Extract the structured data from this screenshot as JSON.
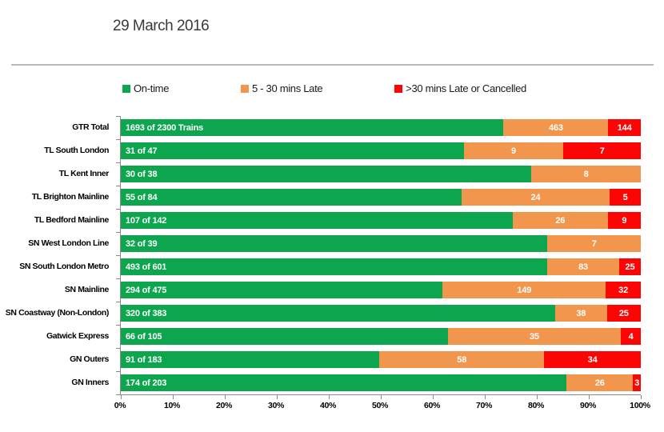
{
  "title": "29 March 2016",
  "legend": [
    {
      "label": "On-time",
      "color": "#0da64f"
    },
    {
      "label": "5 - 30 mins Late",
      "color": "#f2964e"
    },
    {
      "label": ">30 mins Late or Cancelled",
      "color": "#fb0505"
    }
  ],
  "colors": {
    "on_time": "#0da64f",
    "late": "#f2964e",
    "cancelled": "#fb0505",
    "axis": "#8a8a8a",
    "separator": "#b9b9b9",
    "title_text": "#3a3a3a"
  },
  "chart_data": {
    "type": "bar",
    "subtype": "horizontal-100pct-stacked",
    "title": "29 March 2016",
    "xlabel": "",
    "ylabel": "",
    "xlim": [
      0,
      100
    ],
    "x_ticks": [
      "0%",
      "10%",
      "20%",
      "30%",
      "40%",
      "50%",
      "60%",
      "70%",
      "80%",
      "90%",
      "100%"
    ],
    "grid": false,
    "legend_position": "top",
    "categories": [
      "GTR Total",
      "TL South London",
      "TL Kent Inner",
      "TL Brighton Mainline",
      "TL Bedford Mainline",
      "SN West London Line",
      "SN South London Metro",
      "SN Mainline",
      "SN Coastway (Non-London)",
      "Gatwick Express",
      "GN Outers",
      "GN Inners"
    ],
    "totals": [
      2300,
      47,
      38,
      84,
      142,
      39,
      601,
      475,
      383,
      105,
      183,
      203
    ],
    "series": [
      {
        "name": "On-time",
        "color": "#0da64f",
        "values": [
          1693,
          31,
          30,
          55,
          107,
          32,
          493,
          294,
          320,
          66,
          91,
          174
        ]
      },
      {
        "name": "5 - 30 mins Late",
        "color": "#f2964e",
        "values": [
          463,
          9,
          8,
          24,
          26,
          7,
          83,
          149,
          38,
          35,
          58,
          26
        ]
      },
      {
        "name": ">30 mins Late or Cancelled",
        "color": "#fb0505",
        "values": [
          144,
          7,
          0,
          5,
          9,
          0,
          25,
          32,
          25,
          4,
          34,
          3
        ]
      }
    ],
    "bar_labels": {
      "on_time": [
        "1693 of 2300 Trains",
        "31 of 47",
        "30 of 38",
        "55 of 84",
        "107 of 142",
        "32 of 39",
        "493 of 601",
        "294 of 475",
        "320 of 383",
        "66 of 105",
        "91 of 183",
        "174 of 203"
      ],
      "late": [
        "463",
        "9",
        "8",
        "24",
        "26",
        "7",
        "83",
        "149",
        "38",
        "35",
        "58",
        "26"
      ],
      "cancelled": [
        "144",
        "7",
        "",
        "5",
        "9",
        "",
        "25",
        "32",
        "25",
        "4",
        "34",
        "3"
      ]
    }
  }
}
